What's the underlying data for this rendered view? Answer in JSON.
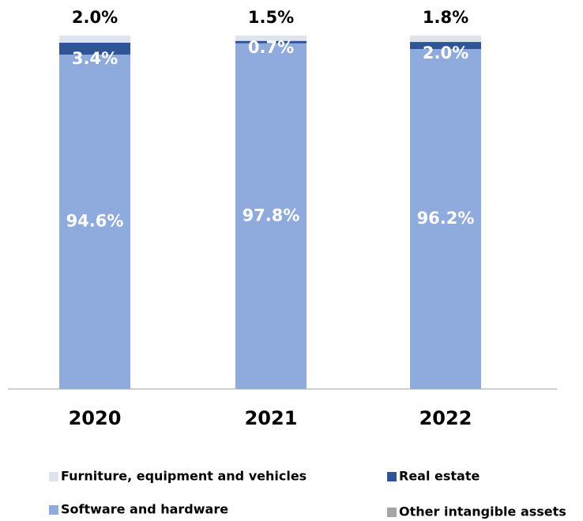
{
  "chart_data": {
    "type": "stacked_bar",
    "categories": [
      "2020",
      "2021",
      "2022"
    ],
    "ylim": [
      0,
      100
    ],
    "series": [
      {
        "name": "Software and hardware",
        "color": "#8faadc",
        "values": [
          94.6,
          97.8,
          96.2
        ],
        "value_labels": [
          "94.6%",
          "97.8%",
          "96.2%"
        ]
      },
      {
        "name": "Real estate",
        "color": "#2f5597",
        "values": [
          3.4,
          0.7,
          2.0
        ],
        "value_labels": [
          "3.4%",
          "0.7%",
          "2.0%"
        ]
      },
      {
        "name": "Other intangible assets",
        "color": "#a6a6a6",
        "values": [
          0,
          0,
          0
        ]
      },
      {
        "name": "Furniture, equipment and vehicles",
        "color": "#dde4ee",
        "values": [
          2.0,
          1.5,
          1.8
        ],
        "value_labels": [
          "2.0%",
          "1.5%",
          "1.8%"
        ]
      }
    ]
  }
}
